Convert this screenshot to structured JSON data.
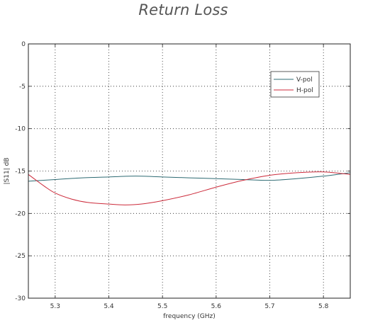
{
  "chart_data": {
    "type": "line",
    "title": "Return Loss",
    "xlabel": "frequency (GHz)",
    "ylabel": "|S11| dB",
    "xlim": [
      5.25,
      5.85
    ],
    "ylim": [
      -30,
      0
    ],
    "xticks": [
      5.3,
      5.4,
      5.5,
      5.6,
      5.7,
      5.8
    ],
    "yticks": [
      0,
      -5,
      -10,
      -15,
      -20,
      -25,
      -30
    ],
    "grid": true,
    "legend_position": "top-right",
    "series": [
      {
        "name": "V-pol",
        "color": "#2e6b73",
        "x": [
          5.25,
          5.3,
          5.35,
          5.4,
          5.45,
          5.5,
          5.55,
          5.6,
          5.65,
          5.7,
          5.75,
          5.8,
          5.85
        ],
        "y": [
          -16.2,
          -16.0,
          -15.8,
          -15.7,
          -15.6,
          -15.7,
          -15.8,
          -15.9,
          -16.0,
          -16.1,
          -15.9,
          -15.6,
          -15.2
        ]
      },
      {
        "name": "H-pol",
        "color": "#cc2a3a",
        "x": [
          5.25,
          5.28,
          5.3,
          5.33,
          5.36,
          5.4,
          5.43,
          5.46,
          5.5,
          5.55,
          5.6,
          5.65,
          5.7,
          5.75,
          5.8,
          5.85
        ],
        "y": [
          -15.4,
          -16.8,
          -17.6,
          -18.3,
          -18.7,
          -18.9,
          -19.0,
          -18.9,
          -18.5,
          -17.8,
          -16.9,
          -16.1,
          -15.5,
          -15.2,
          -15.1,
          -15.4
        ]
      }
    ]
  }
}
